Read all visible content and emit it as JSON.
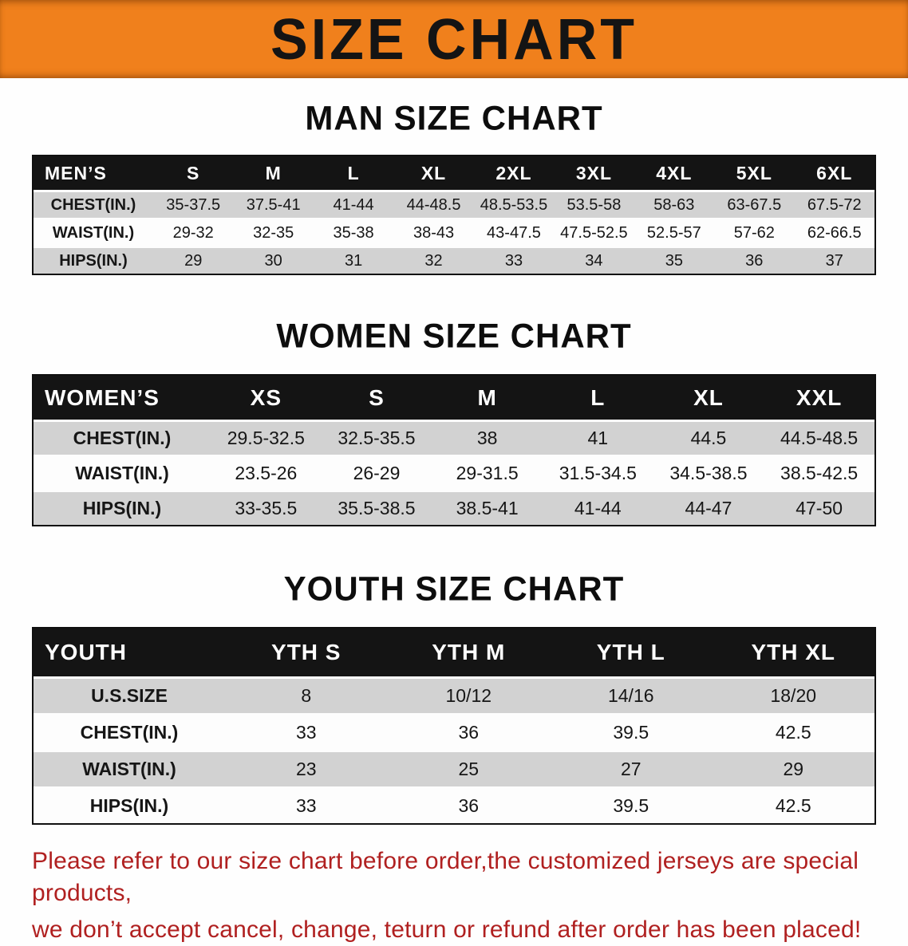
{
  "banner": {
    "title": "SIZE CHART"
  },
  "sections": [
    {
      "id": "men",
      "heading": "MAN SIZE CHART",
      "table": {
        "header": [
          "MEN’S",
          "S",
          "M",
          "L",
          "XL",
          "2XL",
          "3XL",
          "4XL",
          "5XL",
          "6XL"
        ],
        "rows": [
          [
            "CHEST(IN.)",
            "35-37.5",
            "37.5-41",
            "41-44",
            "44-48.5",
            "48.5-53.5",
            "53.5-58",
            "58-63",
            "63-67.5",
            "67.5-72"
          ],
          [
            "WAIST(IN.)",
            "29-32",
            "32-35",
            "35-38",
            "38-43",
            "43-47.5",
            "47.5-52.5",
            "52.5-57",
            "57-62",
            "62-66.5"
          ],
          [
            "HIPS(IN.)",
            "29",
            "30",
            "31",
            "32",
            "33",
            "34",
            "35",
            "36",
            "37"
          ]
        ]
      }
    },
    {
      "id": "women",
      "heading": "WOMEN SIZE CHART",
      "table": {
        "header": [
          "WOMEN’S",
          "XS",
          "S",
          "M",
          "L",
          "XL",
          "XXL"
        ],
        "rows": [
          [
            "CHEST(IN.)",
            "29.5-32.5",
            "32.5-35.5",
            "38",
            "41",
            "44.5",
            "44.5-48.5"
          ],
          [
            "WAIST(IN.)",
            "23.5-26",
            "26-29",
            "29-31.5",
            "31.5-34.5",
            "34.5-38.5",
            "38.5-42.5"
          ],
          [
            "HIPS(IN.)",
            "33-35.5",
            "35.5-38.5",
            "38.5-41",
            "41-44",
            "44-47",
            "47-50"
          ]
        ]
      }
    },
    {
      "id": "youth",
      "heading": "YOUTH SIZE CHART",
      "table": {
        "header": [
          "YOUTH",
          "YTH S",
          "YTH M",
          "YTH L",
          "YTH XL"
        ],
        "rows": [
          [
            "U.S.SIZE",
            "8",
            "10/12",
            "14/16",
            "18/20"
          ],
          [
            "CHEST(IN.)",
            "33",
            "36",
            "39.5",
            "42.5"
          ],
          [
            "WAIST(IN.)",
            "23",
            "25",
            "27",
            "29"
          ],
          [
            "HIPS(IN.)",
            "33",
            "36",
            "39.5",
            "42.5"
          ]
        ]
      }
    }
  ],
  "footer": {
    "line1": "Please refer to our size chart before order,the customized jerseys are special products,",
    "line2": "we don’t accept cancel, change, teturn or refund after order has been placed!"
  },
  "colors": {
    "banner_orange": "#f0801c",
    "header_black": "#141414",
    "row_gray": "#d2d2d2",
    "disclaimer_red": "#b02020"
  }
}
